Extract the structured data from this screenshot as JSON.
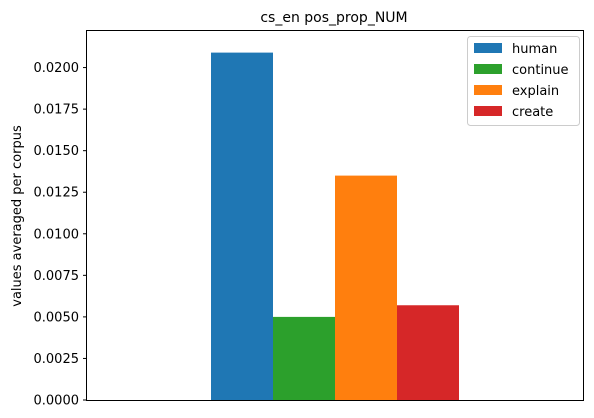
{
  "chart_data": {
    "type": "bar",
    "title": "cs_en pos_prop_NUM",
    "xlabel": "",
    "ylabel": "values averaged per corpus",
    "ylim": [
      0,
      0.0222
    ],
    "yticks": [
      "0.0000",
      "0.0025",
      "0.0050",
      "0.0075",
      "0.0100",
      "0.0125",
      "0.0150",
      "0.0175",
      "0.0200"
    ],
    "ytick_values": [
      0,
      0.0025,
      0.005,
      0.0075,
      0.01,
      0.0125,
      0.015,
      0.0175,
      0.02
    ],
    "categories": [
      ""
    ],
    "series": [
      {
        "name": "human",
        "values": [
          0.0209
        ],
        "color": "#1f77b4"
      },
      {
        "name": "continue",
        "values": [
          0.005
        ],
        "color": "#2ca02c"
      },
      {
        "name": "explain",
        "values": [
          0.0135
        ],
        "color": "#ff7f0e"
      },
      {
        "name": "create",
        "values": [
          0.0057
        ],
        "color": "#d62728"
      }
    ],
    "grid": false,
    "legend_position": "top-right"
  }
}
